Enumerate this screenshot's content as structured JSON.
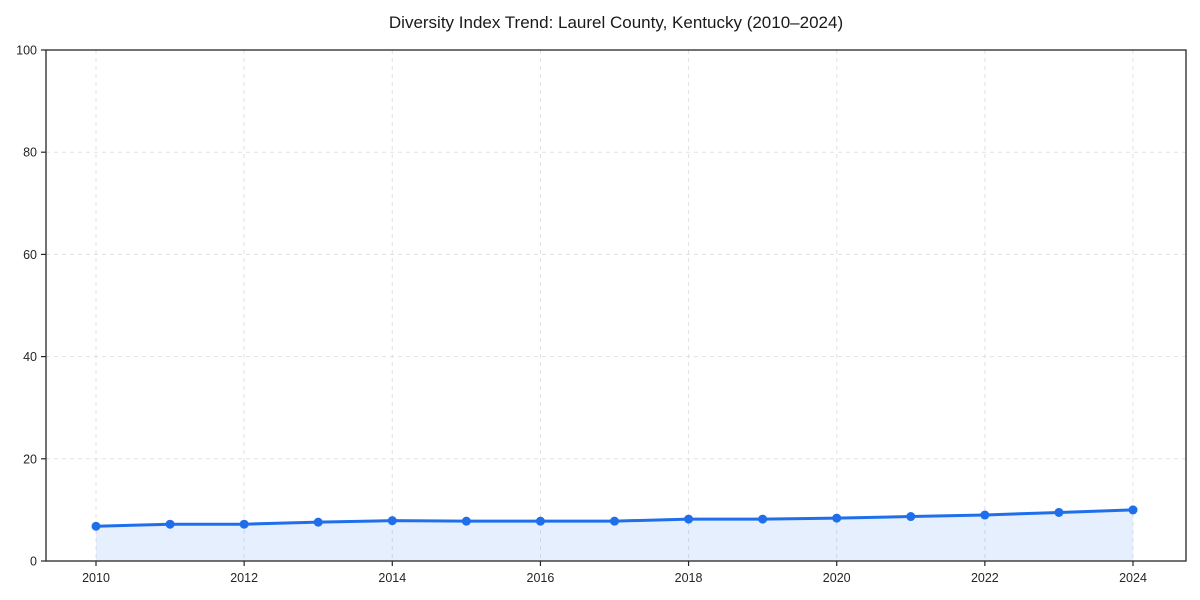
{
  "chart_data": {
    "type": "line",
    "title": "Diversity Index Trend: Laurel County, Kentucky (2010–2024)",
    "x": [
      2010,
      2011,
      2012,
      2013,
      2014,
      2015,
      2016,
      2017,
      2018,
      2019,
      2020,
      2021,
      2022,
      2023,
      2024
    ],
    "series": [
      {
        "name": "Diversity Index",
        "values": [
          6.8,
          7.2,
          7.2,
          7.6,
          7.9,
          7.8,
          7.8,
          7.8,
          8.2,
          8.2,
          8.4,
          8.7,
          9.0,
          9.5,
          10.0
        ]
      }
    ],
    "xlabel": "",
    "ylabel": "",
    "ylim": [
      0,
      100
    ],
    "yticks": [
      0,
      20,
      40,
      60,
      80,
      100
    ],
    "xticks": [
      2010,
      2012,
      2014,
      2016,
      2018,
      2020,
      2022,
      2024
    ],
    "grid": true,
    "grid_style": "dashed",
    "legend": false,
    "marker": "circle",
    "area_fill": true,
    "colors": {
      "line": "#1f6feb",
      "fill": "#1f6feb",
      "fill_opacity": 0.11,
      "grid": "#e1e1e1",
      "spine": "#262626",
      "text": "#1a1a1a"
    }
  }
}
